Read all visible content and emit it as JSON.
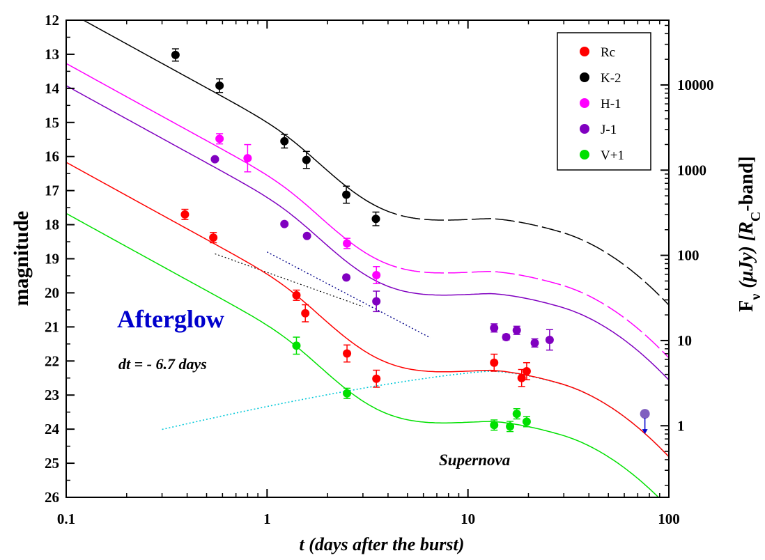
{
  "chart_data": {
    "type": "scatter",
    "xlabel": "t (days after the burst)",
    "ylabel": "magnitude",
    "y2label_main": "F",
    "y2label_sub": "ν",
    "y2label_unit": "(μJy) [R",
    "y2label_unit_sub": "C",
    "y2label_end": "-band]",
    "x_scale": "log",
    "xlim": [
      0.1,
      100
    ],
    "ylim": [
      26,
      12
    ],
    "y2_scale": "log",
    "x_ticks": [
      0.1,
      1,
      10,
      100
    ],
    "x_tick_labels": [
      "0.1",
      "1",
      "10",
      "100"
    ],
    "y_ticks": [
      12,
      13,
      14,
      15,
      16,
      17,
      18,
      19,
      20,
      21,
      22,
      23,
      24,
      25,
      26
    ],
    "y_tick_labels": [
      "12",
      "13",
      "14",
      "15",
      "16",
      "17",
      "18",
      "19",
      "20",
      "21",
      "22",
      "23",
      "24",
      "25",
      "26"
    ],
    "y2_ticks": [
      10000,
      1000,
      100,
      10,
      1
    ],
    "y2_tick_labels": [
      "10000",
      "1000",
      "100",
      "10",
      "1"
    ],
    "legend_position": "top-right",
    "series": [
      {
        "name": "Rc",
        "color": "#ff0000",
        "points": [
          [
            0.39,
            17.7,
            0.15
          ],
          [
            0.54,
            18.38,
            0.15
          ],
          [
            1.4,
            20.07,
            0.15
          ],
          [
            1.55,
            20.6,
            0.25
          ],
          [
            2.5,
            21.78,
            0.25
          ],
          [
            3.5,
            22.52,
            0.25
          ],
          [
            13.5,
            22.05,
            0.25
          ],
          [
            18.5,
            22.5,
            0.25
          ],
          [
            19.6,
            22.3,
            0.25
          ]
        ]
      },
      {
        "name": "K-2",
        "color": "#000000",
        "points": [
          [
            0.35,
            13.02,
            0.18
          ],
          [
            0.58,
            13.92,
            0.2
          ],
          [
            1.22,
            15.55,
            0.2
          ],
          [
            1.57,
            16.1,
            0.25
          ],
          [
            2.48,
            17.12,
            0.25
          ],
          [
            3.48,
            17.83,
            0.2
          ]
        ]
      },
      {
        "name": "H-1",
        "color": "#ff00ff",
        "points": [
          [
            0.58,
            15.48,
            0.15
          ],
          [
            0.8,
            16.05,
            0.4
          ],
          [
            2.5,
            18.55,
            0.15
          ],
          [
            3.5,
            19.48,
            0.25
          ]
        ]
      },
      {
        "name": "J-1",
        "color": "#8000c0",
        "points": [
          [
            0.55,
            16.08,
            0.05
          ],
          [
            1.22,
            17.98,
            0.05
          ],
          [
            1.58,
            18.33,
            0.05
          ],
          [
            2.48,
            19.55,
            0.05
          ],
          [
            3.5,
            20.25,
            0.3
          ],
          [
            13.5,
            21.03,
            0.12
          ],
          [
            15.5,
            21.3,
            0.08
          ],
          [
            17.5,
            21.1,
            0.12
          ],
          [
            21.5,
            21.47,
            0.12
          ],
          [
            25.5,
            21.38,
            0.3
          ]
        ]
      },
      {
        "name": "V+1",
        "color": "#00e000",
        "points": [
          [
            1.4,
            21.55,
            0.25
          ],
          [
            2.5,
            22.95,
            0.15
          ],
          [
            13.5,
            23.88,
            0.15
          ],
          [
            16.2,
            23.92,
            0.15
          ],
          [
            17.5,
            23.55,
            0.15
          ],
          [
            19.6,
            23.78,
            0.15
          ]
        ]
      }
    ],
    "upper_limit": {
      "x": 76,
      "y": 23.55,
      "color": "#8060c0"
    },
    "annotations": {
      "afterglow_label": "Afterglow",
      "dt_label": "dt = - 6.7 days",
      "supernova_label": "Supernova"
    }
  },
  "colors": {
    "afterglow": "#0000cc",
    "sn_model": "#00c8d8",
    "powerlaw": "#000088",
    "upper_limit_arrow": "#0000cc"
  }
}
